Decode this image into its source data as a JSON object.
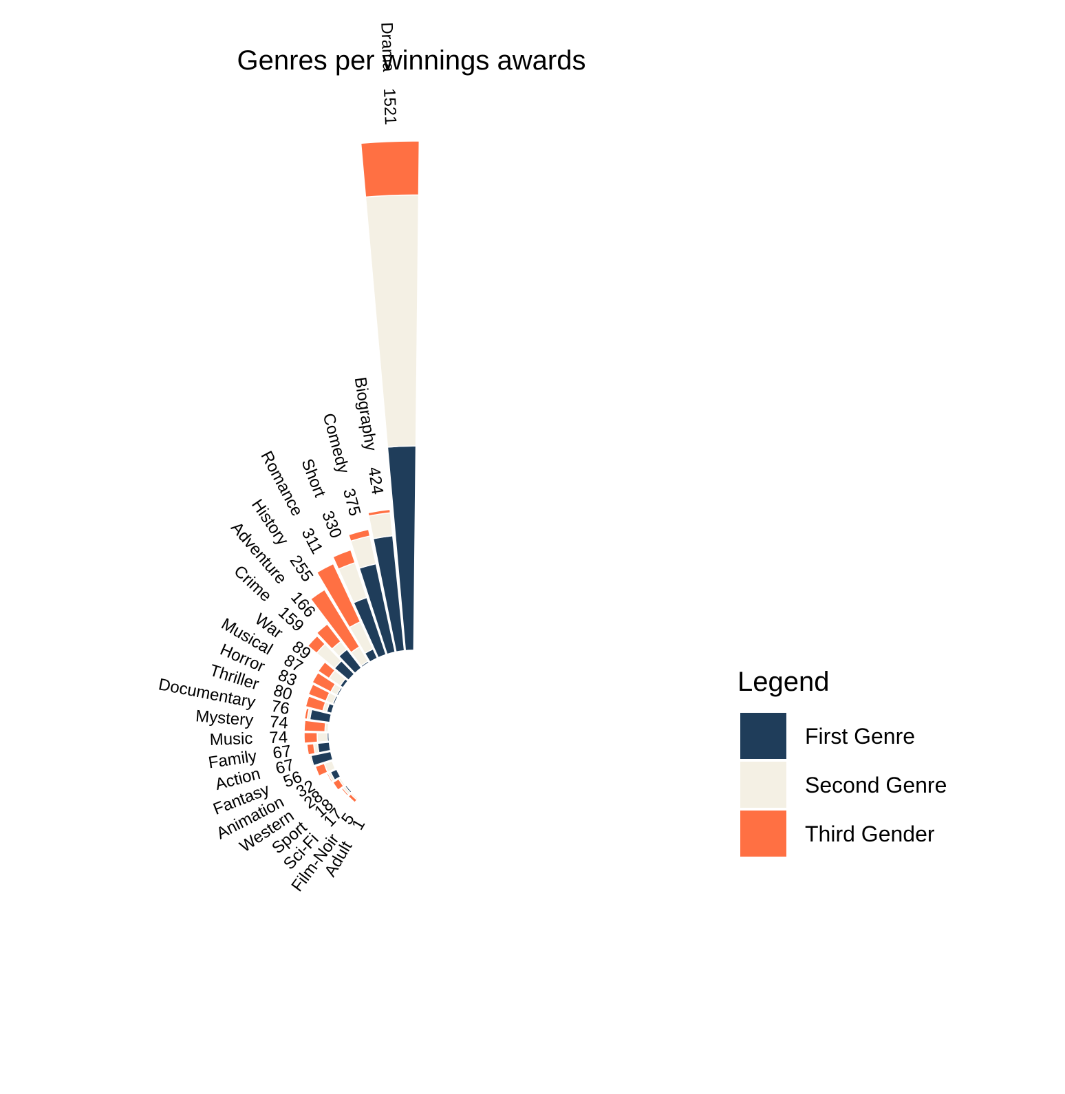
{
  "chart_data": {
    "type": "bar",
    "subtype": "circular-stacked",
    "title": "Genres per winnings awards",
    "categories": [
      "Drama",
      "Biography",
      "Comedy",
      "Short",
      "Romance",
      "History",
      "Adventure",
      "Crime",
      "War",
      "Musical",
      "Horror",
      "Thriller",
      "Documentary",
      "Mystery",
      "Music",
      "Family",
      "Action",
      "Fantasy",
      "Animation",
      "Western",
      "Sport",
      "Sci-Fi",
      "Film-Noir",
      "Adult"
    ],
    "totals": [
      1521,
      424,
      375,
      330,
      311,
      255,
      166,
      159,
      89,
      87,
      83,
      80,
      76,
      74,
      74,
      67,
      67,
      56,
      32,
      28,
      18,
      17,
      5,
      1
    ],
    "series": [
      {
        "name": "First Genre",
        "color": "#1f3d5a",
        "values": [
          610,
          345,
          270,
          180,
          30,
          5,
          70,
          55,
          10,
          5,
          5,
          15,
          60,
          2,
          5,
          35,
          60,
          3,
          20,
          2,
          5,
          2,
          1,
          1
        ]
      },
      {
        "name": "Second Genre",
        "color": "#f4f0e4",
        "values": [
          750,
          69,
          85,
          110,
          90,
          50,
          30,
          70,
          40,
          20,
          22,
          12,
          8,
          10,
          30,
          12,
          5,
          25,
          8,
          6,
          8,
          5,
          3,
          0
        ]
      },
      {
        "name": "Third Gender",
        "color": "#ff7043",
        "values": [
          161,
          10,
          20,
          40,
          191,
          200,
          66,
          34,
          39,
          62,
          56,
          53,
          8,
          62,
          39,
          20,
          2,
          28,
          4,
          20,
          5,
          10,
          1,
          0
        ]
      }
    ],
    "legend": {
      "title": "Legend",
      "position": "right"
    },
    "grid": false
  }
}
